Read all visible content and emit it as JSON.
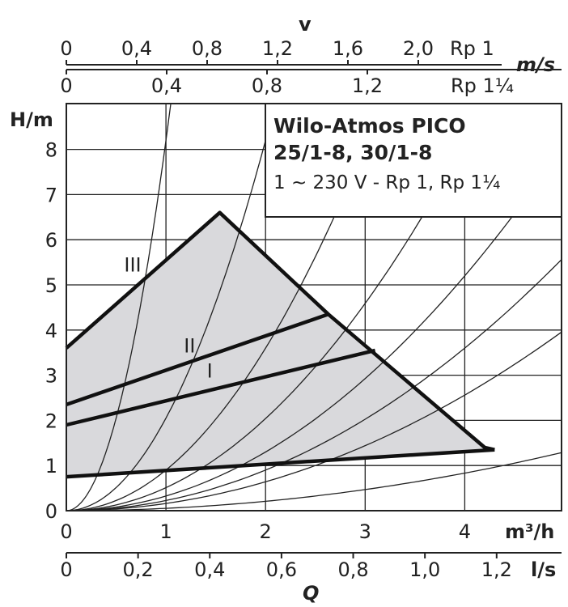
{
  "chart_data": {
    "type": "line",
    "title": [
      "Wilo-Atmos PICO",
      "25/1-8, 30/1-8"
    ],
    "subtitle": "1 ~ 230 V - Rp 1, Rp 1¼",
    "xlabel": "Q",
    "ylabel": "H/m",
    "x_unit": "m³/h",
    "xlim": [
      0,
      5
    ],
    "ylim": [
      0,
      9
    ],
    "x_ticks": [
      "0",
      "1",
      "2",
      "3",
      "4"
    ],
    "y_ticks": [
      "0",
      "1",
      "2",
      "3",
      "4",
      "5",
      "6",
      "7",
      "8"
    ],
    "grid": true,
    "secondary_axes": {
      "flow_ls": {
        "unit": "l/s",
        "ticks": [
          {
            "v": 0,
            "label": "0"
          },
          {
            "v": 0.2,
            "label": "0,2"
          },
          {
            "v": 0.4,
            "label": "0,4"
          },
          {
            "v": 0.6,
            "label": "0,6"
          },
          {
            "v": 0.8,
            "label": "0,8"
          },
          {
            "v": 1.0,
            "label": "1,0"
          },
          {
            "v": 1.2,
            "label": "1,2"
          }
        ]
      },
      "velocity_label": "v",
      "velocity_unit": "m/s",
      "velocity_rp1": {
        "name": "Rp 1",
        "ticks": [
          {
            "v": 0,
            "label": "0"
          },
          {
            "v": 0.4,
            "label": "0,4"
          },
          {
            "v": 0.8,
            "label": "0,8"
          },
          {
            "v": 1.2,
            "label": "1,2"
          },
          {
            "v": 1.6,
            "label": "1,6"
          },
          {
            "v": 2.0,
            "label": "2,0"
          }
        ]
      },
      "velocity_rp114": {
        "name": "Rp 1¼",
        "ticks": [
          {
            "v": 0,
            "label": "0"
          },
          {
            "v": 0.4,
            "label": "0,4"
          },
          {
            "v": 0.8,
            "label": "0,8"
          },
          {
            "v": 1.2,
            "label": "1,2"
          }
        ]
      }
    },
    "operating_area": [
      [
        0,
        3.6
      ],
      [
        1.54,
        6.6
      ],
      [
        2.63,
        4.35
      ],
      [
        4.2,
        1.4
      ],
      [
        4.3,
        1.35
      ],
      [
        0,
        0.75
      ]
    ],
    "series": [
      {
        "name": "III",
        "x": [
          0,
          1.54,
          2.63,
          4.2,
          4.3
        ],
        "y": [
          3.6,
          6.6,
          4.35,
          1.4,
          1.35
        ]
      },
      {
        "name": "II",
        "x": [
          0,
          2.63
        ],
        "y": [
          2.35,
          4.35
        ]
      },
      {
        "name": "I",
        "x": [
          0,
          3.1
        ],
        "y": [
          1.9,
          3.55
        ]
      },
      {
        "name": "",
        "x": [
          0,
          4.3
        ],
        "y": [
          0.75,
          1.35
        ]
      }
    ],
    "system_curves_k": [
      8.2,
      2.05,
      0.9,
      0.51,
      0.325,
      0.225,
      0.16,
      0.052
    ],
    "curve_labels": [
      {
        "text": "III",
        "x": 0.58,
        "y": 5.3
      },
      {
        "text": "II",
        "x": 1.18,
        "y": 3.5
      },
      {
        "text": "I",
        "x": 1.41,
        "y": 2.95
      }
    ]
  }
}
